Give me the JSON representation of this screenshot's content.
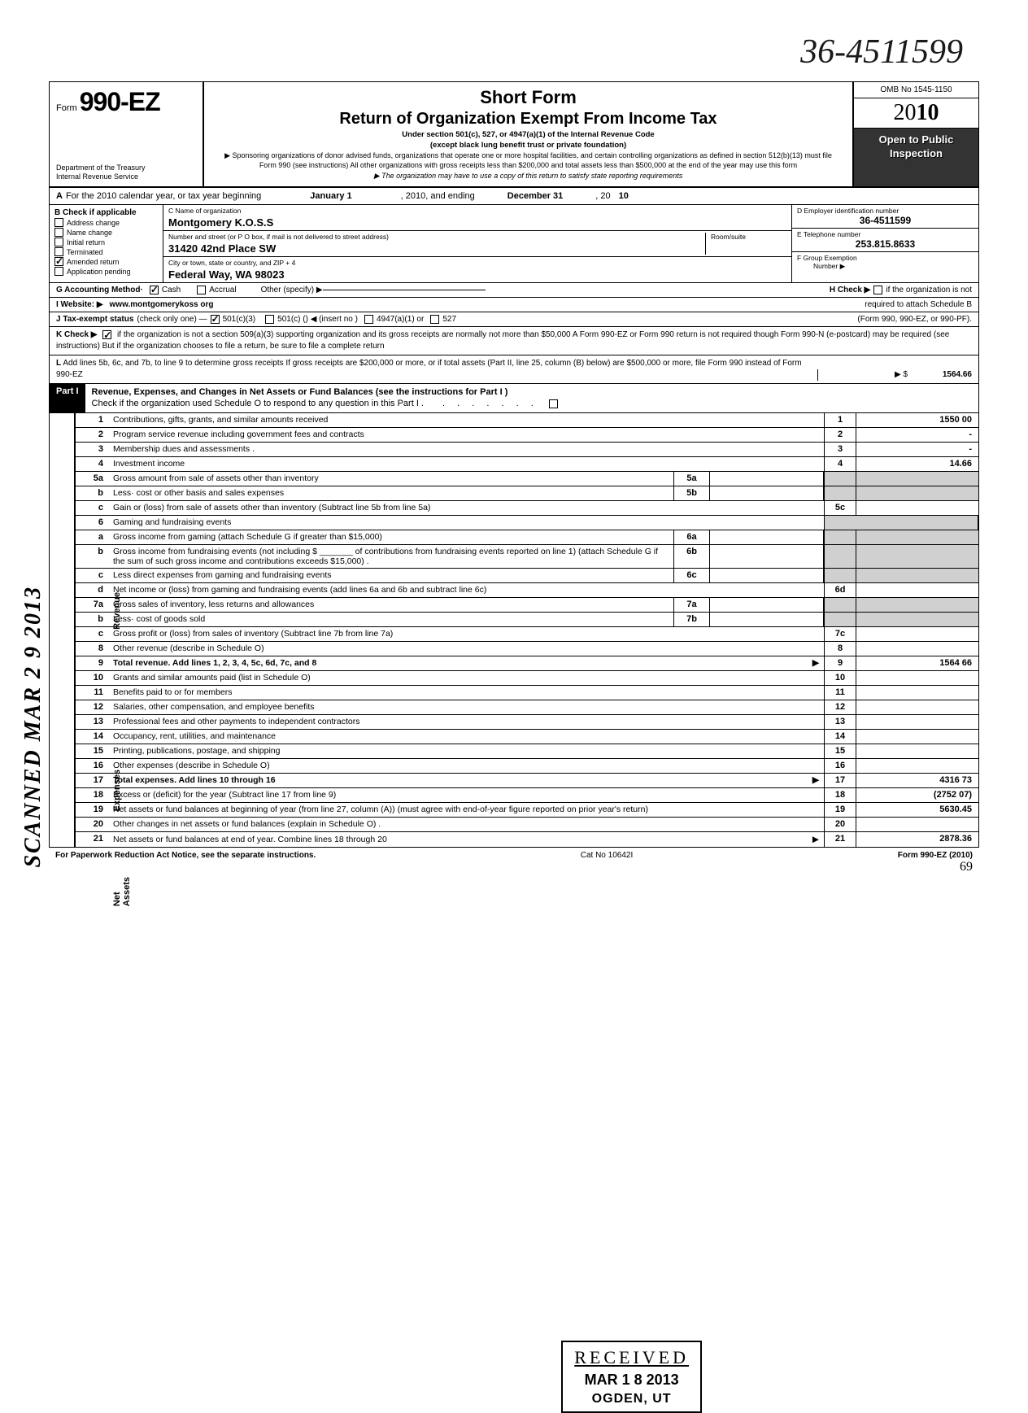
{
  "handwritten_ein": "36-4511599",
  "header": {
    "form_word": "Form",
    "form_number": "990-EZ",
    "dept_line1": "Department of the Treasury",
    "dept_line2": "Internal Revenue Service",
    "title1": "Short Form",
    "title2": "Return of Organization Exempt From Income Tax",
    "sub": "Under section 501(c), 527, or 4947(a)(1) of the Internal Revenue Code",
    "sub2": "(except black lung benefit trust or private foundation)",
    "tiny1": "▶ Sponsoring organizations of donor advised funds, organizations that operate one or more hospital facilities, and certain controlling organizations as defined in section 512(b)(13) must file Form 990 (see instructions) All other organizations with gross receipts less than $200,000 and total assets less than $500,000 at the end of the year may use this form",
    "tiny2": "▶ The organization may have to use a copy of this return to satisfy state reporting requirements",
    "omb": "OMB No 1545-1150",
    "year_prefix": "20",
    "year_bold": "10",
    "open1": "Open to Public",
    "open2": "Inspection"
  },
  "row_a": {
    "label": "A",
    "text1": "For the 2010 calendar year, or tax year beginning",
    "begin": "January 1",
    "text2": ", 2010, and ending",
    "end": "December 31",
    "text3": ", 20",
    "endyr": "10"
  },
  "col_b": {
    "header": "B Check if applicable",
    "items": [
      "Address change",
      "Name change",
      "Initial return",
      "Terminated",
      "Amended return",
      "Application pending"
    ],
    "checked_index": 4
  },
  "col_c": {
    "name_lbl": "C Name of organization",
    "name_val": "Montgomery K.O.S.S",
    "addr_lbl": "Number and street (or P O  box, if mail is not delivered to street address)",
    "room_lbl": "Room/suite",
    "addr_val": "31420 42nd Place SW",
    "city_lbl": "City or town, state or country, and ZIP + 4",
    "city_val": "Federal Way, WA 98023"
  },
  "col_de": {
    "d_lbl": "D Employer identification number",
    "d_val": "36-4511599",
    "e_lbl": "E Telephone number",
    "e_val": "253.815.8633",
    "f_lbl": "F Group Exemption",
    "f_lbl2": "Number ▶"
  },
  "row_g": {
    "label": "G Accounting Method·",
    "cash": "Cash",
    "accrual": "Accrual",
    "other": "Other (specify) ▶",
    "h_label": "H Check ▶",
    "h_text": "if the organization is not"
  },
  "row_i": {
    "label": "I   Website: ▶",
    "val": "www.montgomerykoss org",
    "right": "required to attach Schedule B"
  },
  "row_j": {
    "label": "J Tax-exempt status",
    "text": "(check only one) —",
    "opt1": "501(c)(3)",
    "opt2": "501(c) (",
    "insert": ") ◀ (insert no )",
    "opt3": "4947(a)(1) or",
    "opt4": "527",
    "right": "(Form 990, 990-EZ, or 990-PF)."
  },
  "row_k": {
    "label": "K Check ▶",
    "text": "if the organization is not a section 509(a)(3) supporting organization and its gross receipts are normally not more than $50,000   A Form 990-EZ or Form 990 return is not required though Form 990-N (e-postcard) may be required (see instructions)  But if the organization chooses to file a return, be sure to file a complete return"
  },
  "row_l": {
    "label": "L",
    "text": "Add lines 5b, 6c, and 7b, to line 9 to determine gross receipts  If gross receipts are $200,000 or more, or if total assets (Part II, line  25, column (B) below) are $500,000 or more, file Form 990 instead of Form 990-EZ",
    "arrow": "▶  $",
    "val": "1564.66"
  },
  "part1": {
    "label": "Part I",
    "title": "Revenue, Expenses, and Changes in Net Assets or Fund Balances (see the instructions for Part I )",
    "sub": "Check if the organization used Schedule O to respond to any question in this Part I ."
  },
  "side_labels": {
    "scanned": "SCANNED  MAR 2 9  2013",
    "revenue": "Revenue",
    "expenses": "Expenses",
    "netassets": "Net Assets"
  },
  "lines": [
    {
      "n": "1",
      "desc": "Contributions, gifts, grants, and similar amounts received",
      "rn": "1",
      "rv": "1550 00"
    },
    {
      "n": "2",
      "desc": "Program service revenue including government fees and contracts",
      "rn": "2",
      "rv": "-"
    },
    {
      "n": "3",
      "desc": "Membership dues and assessments .",
      "rn": "3",
      "rv": "-"
    },
    {
      "n": "4",
      "desc": "Investment income",
      "rn": "4",
      "rv": "14.66"
    },
    {
      "n": "5a",
      "desc": "Gross amount from sale of assets other than inventory",
      "mn": "5a"
    },
    {
      "n": "b",
      "desc": "Less· cost or other basis and sales expenses",
      "mn": "5b"
    },
    {
      "n": "c",
      "desc": "Gain or (loss) from sale of assets other than inventory (Subtract line 5b from line 5a)",
      "rn": "5c",
      "rv": ""
    },
    {
      "n": "6",
      "desc": "Gaming and fundraising events"
    },
    {
      "n": "a",
      "desc": "Gross income from gaming (attach Schedule G if greater than $15,000)",
      "mn": "6a"
    },
    {
      "n": "b",
      "desc": "Gross income from fundraising events (not including $ _______ of contributions from fundraising events reported on line 1) (attach Schedule G if the sum of such gross income and contributions exceeds $15,000) .",
      "mn": "6b"
    },
    {
      "n": "c",
      "desc": "Less  direct expenses from gaming and fundraising events",
      "mn": "6c"
    },
    {
      "n": "d",
      "desc": "Net income or (loss) from gaming and fundraising events (add lines 6a and 6b and subtract line 6c)",
      "rn": "6d",
      "rv": ""
    },
    {
      "n": "7a",
      "desc": "Gross sales of inventory, less returns and allowances",
      "mn": "7a"
    },
    {
      "n": "b",
      "desc": "Less· cost of goods sold",
      "mn": "7b"
    },
    {
      "n": "c",
      "desc": "Gross profit or (loss) from sales of inventory (Subtract line 7b from line 7a)",
      "rn": "7c",
      "rv": ""
    },
    {
      "n": "8",
      "desc": "Other revenue (describe in Schedule O)",
      "rn": "8",
      "rv": ""
    },
    {
      "n": "9",
      "desc": "Total revenue. Add lines 1, 2, 3, 4, 5c, 6d, 7c, and 8",
      "rn": "9",
      "rv": "1564 66",
      "bold": true,
      "arrow": true
    },
    {
      "n": "10",
      "desc": "Grants and similar amounts paid (list in Schedule O)",
      "rn": "10",
      "rv": ""
    },
    {
      "n": "11",
      "desc": "Benefits paid to or for members",
      "rn": "11",
      "rv": ""
    },
    {
      "n": "12",
      "desc": "Salaries, other compensation, and employee benefits",
      "rn": "12",
      "rv": ""
    },
    {
      "n": "13",
      "desc": "Professional fees and other payments to independent contractors",
      "rn": "13",
      "rv": ""
    },
    {
      "n": "14",
      "desc": "Occupancy, rent, utilities, and maintenance",
      "rn": "14",
      "rv": ""
    },
    {
      "n": "15",
      "desc": "Printing, publications, postage, and shipping",
      "rn": "15",
      "rv": ""
    },
    {
      "n": "16",
      "desc": "Other expenses (describe in Schedule O)",
      "rn": "16",
      "rv": ""
    },
    {
      "n": "17",
      "desc": "Total expenses. Add lines 10 through 16",
      "rn": "17",
      "rv": "4316 73",
      "bold": true,
      "arrow": true
    },
    {
      "n": "18",
      "desc": "Excess or (deficit) for the year (Subtract line 17 from line 9)",
      "rn": "18",
      "rv": "(2752 07)"
    },
    {
      "n": "19",
      "desc": "Net assets or fund balances at beginning of year (from line 27, column (A)) (must agree with end-of-year figure reported on prior year's return)",
      "rn": "19",
      "rv": "5630.45"
    },
    {
      "n": "20",
      "desc": "Other changes in net assets or fund balances (explain in Schedule O) .",
      "rn": "20",
      "rv": ""
    },
    {
      "n": "21",
      "desc": "Net assets or fund balances at end of year. Combine lines 18 through 20",
      "rn": "21",
      "rv": "2878.36",
      "arrow": true
    }
  ],
  "received": {
    "r1": "RECEIVED",
    "r2": "MAR 1 8 2013",
    "r3": "OGDEN, UT"
  },
  "footer": {
    "left": "For Paperwork Reduction Act Notice, see the separate instructions.",
    "mid": "Cat No  10642I",
    "right": "Form 990-EZ (2010)",
    "hand": "69"
  }
}
